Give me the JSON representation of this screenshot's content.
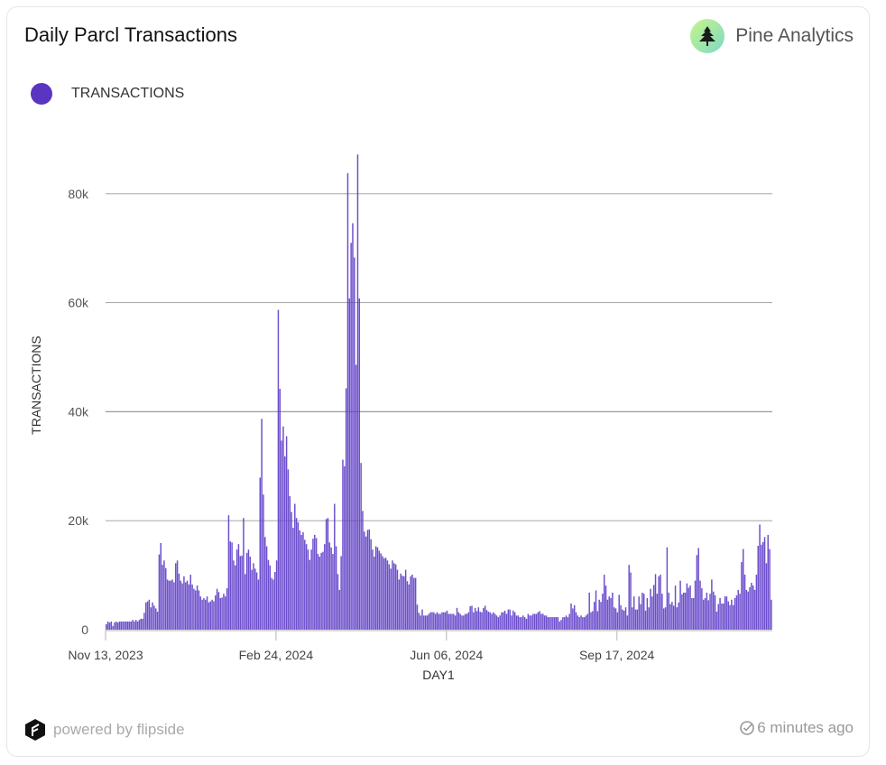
{
  "header": {
    "title": "Daily Parcl Transactions",
    "brand": "Pine Analytics",
    "brand_icon": "pine-tree-icon"
  },
  "footer": {
    "powered_by": "powered by flipside",
    "updated": "6 minutes ago"
  },
  "colors": {
    "bar": "#5f3fc8",
    "grid": "#9a9a9a"
  },
  "chart_data": {
    "type": "bar",
    "title": "Daily Parcl Transactions",
    "xlabel": "DAY1",
    "ylabel": "TRANSACTIONS",
    "legend": {
      "position": "top-left",
      "entries": [
        "TRANSACTIONS"
      ]
    },
    "grid": true,
    "ylim": [
      0,
      90000
    ],
    "y_ticks": [
      {
        "value": 0,
        "label": "0"
      },
      {
        "value": 20000,
        "label": "20k"
      },
      {
        "value": 40000,
        "label": "40k"
      },
      {
        "value": 60000,
        "label": "60k"
      },
      {
        "value": 80000,
        "label": "80k"
      }
    ],
    "x_start": "2023-11-13",
    "x_frequency": "daily",
    "x_ticks": [
      {
        "date": "2023-11-13",
        "label": "Nov 13, 2023"
      },
      {
        "date": "2024-02-24",
        "label": "Feb 24, 2024"
      },
      {
        "date": "2024-06-06",
        "label": "Jun 06, 2024"
      },
      {
        "date": "2024-09-17",
        "label": "Sep 17, 2024"
      }
    ],
    "series": [
      {
        "name": "TRANSACTIONS",
        "values": [
          1000,
          1500,
          1300,
          1500,
          700,
          1300,
          1500,
          1300,
          1500,
          1500,
          1500,
          1500,
          1500,
          1500,
          1500,
          1500,
          1800,
          1500,
          1800,
          1500,
          1800,
          2000,
          2000,
          3100,
          5000,
          5200,
          5500,
          4100,
          5000,
          4400,
          3900,
          3300,
          13800,
          15900,
          11900,
          12700,
          11300,
          9200,
          9000,
          9000,
          9200,
          8700,
          12200,
          12700,
          10300,
          9000,
          8500,
          9800,
          8700,
          9000,
          8300,
          10100,
          8300,
          7500,
          7200,
          8100,
          7200,
          6100,
          5500,
          5800,
          5500,
          6100,
          5000,
          5200,
          5500,
          5200,
          6300,
          7500,
          6900,
          5800,
          5900,
          6600,
          6100,
          7600,
          21000,
          16200,
          16000,
          12700,
          11800,
          14700,
          15700,
          13500,
          13600,
          20500,
          10200,
          14100,
          14700,
          13400,
          11000,
          12200,
          11200,
          10500,
          9200,
          27900,
          38700,
          24800,
          17000,
          15300,
          12800,
          11800,
          9500,
          9200,
          10600,
          12700,
          58700,
          44200,
          34700,
          37300,
          31800,
          35500,
          29400,
          24500,
          21600,
          18700,
          23100,
          20500,
          19700,
          18200,
          17400,
          17900,
          16500,
          15700,
          14700,
          12800,
          14700,
          16700,
          17400,
          16800,
          13900,
          13400,
          14100,
          14300,
          15700,
          20300,
          20500,
          16000,
          15100,
          13900,
          23100,
          15300,
          10200,
          7300,
          13500,
          31200,
          30000,
          44300,
          83800,
          60800,
          71000,
          74600,
          68300,
          48600,
          87200,
          60800,
          30600,
          21800,
          18000,
          17100,
          18300,
          18400,
          16600,
          14700,
          13400,
          15300,
          15100,
          14500,
          14000,
          13500,
          13100,
          13200,
          12700,
          12000,
          11200,
          12700,
          12200,
          12000,
          11000,
          9200,
          10300,
          9900,
          9800,
          11000,
          8900,
          8300,
          9800,
          10100,
          9500,
          9500,
          4600,
          3100,
          2600,
          3700,
          2600,
          2600,
          2600,
          2900,
          3200,
          3200,
          3200,
          2900,
          3200,
          2900,
          2900,
          3200,
          3200,
          3200,
          3500,
          2900,
          2900,
          2900,
          2900,
          2600,
          4000,
          3200,
          2900,
          2600,
          2600,
          2900,
          2900,
          3200,
          4300,
          4400,
          3200,
          4000,
          3400,
          4100,
          3300,
          3200,
          4000,
          4400,
          3600,
          3300,
          3200,
          2900,
          3200,
          2900,
          2600,
          2300,
          2600,
          3200,
          3200,
          3500,
          2900,
          3700,
          3700,
          2600,
          3500,
          3200,
          2600,
          2600,
          2300,
          2300,
          2600,
          2300,
          2000,
          2900,
          2600,
          2600,
          2900,
          2900,
          2900,
          3200,
          3400,
          2900,
          2900,
          2600,
          2600,
          2300,
          2300,
          2300,
          2300,
          2300,
          2300,
          2300,
          1500,
          1800,
          2300,
          2300,
          2600,
          2300,
          2900,
          4800,
          3900,
          4500,
          3200,
          2600,
          2300,
          2600,
          2300,
          2300,
          2600,
          2900,
          6800,
          3200,
          3400,
          5100,
          7200,
          3400,
          5500,
          5100,
          6600,
          10100,
          8100,
          5500,
          6100,
          5800,
          6800,
          4100,
          3900,
          3200,
          6400,
          4500,
          3700,
          3500,
          4100,
          2600,
          11900,
          10500,
          4100,
          6100,
          3700,
          3700,
          6100,
          4700,
          6800,
          6600,
          3500,
          5800,
          4100,
          7500,
          6100,
          8200,
          10200,
          6600,
          9800,
          10100,
          6600,
          3900,
          4100,
          15100,
          6800,
          4700,
          5100,
          4400,
          8100,
          4100,
          5000,
          9000,
          6500,
          6800,
          6800,
          8500,
          7700,
          8100,
          5800,
          5800,
          9000,
          13700,
          15000,
          9000,
          7600,
          5500,
          5800,
          6800,
          5400,
          6600,
          9200,
          7000,
          6300,
          3300,
          4700,
          5800,
          4800,
          4800,
          6100,
          6100,
          5200,
          4500,
          5500,
          4500,
          5800,
          6300,
          7300,
          6600,
          12400,
          14800,
          10100,
          7300,
          7000,
          7800,
          8600,
          8100,
          7300,
          10100,
          15400,
          19300,
          15600,
          16100,
          17000,
          12200,
          17400,
          14800,
          5500
        ]
      }
    ]
  }
}
